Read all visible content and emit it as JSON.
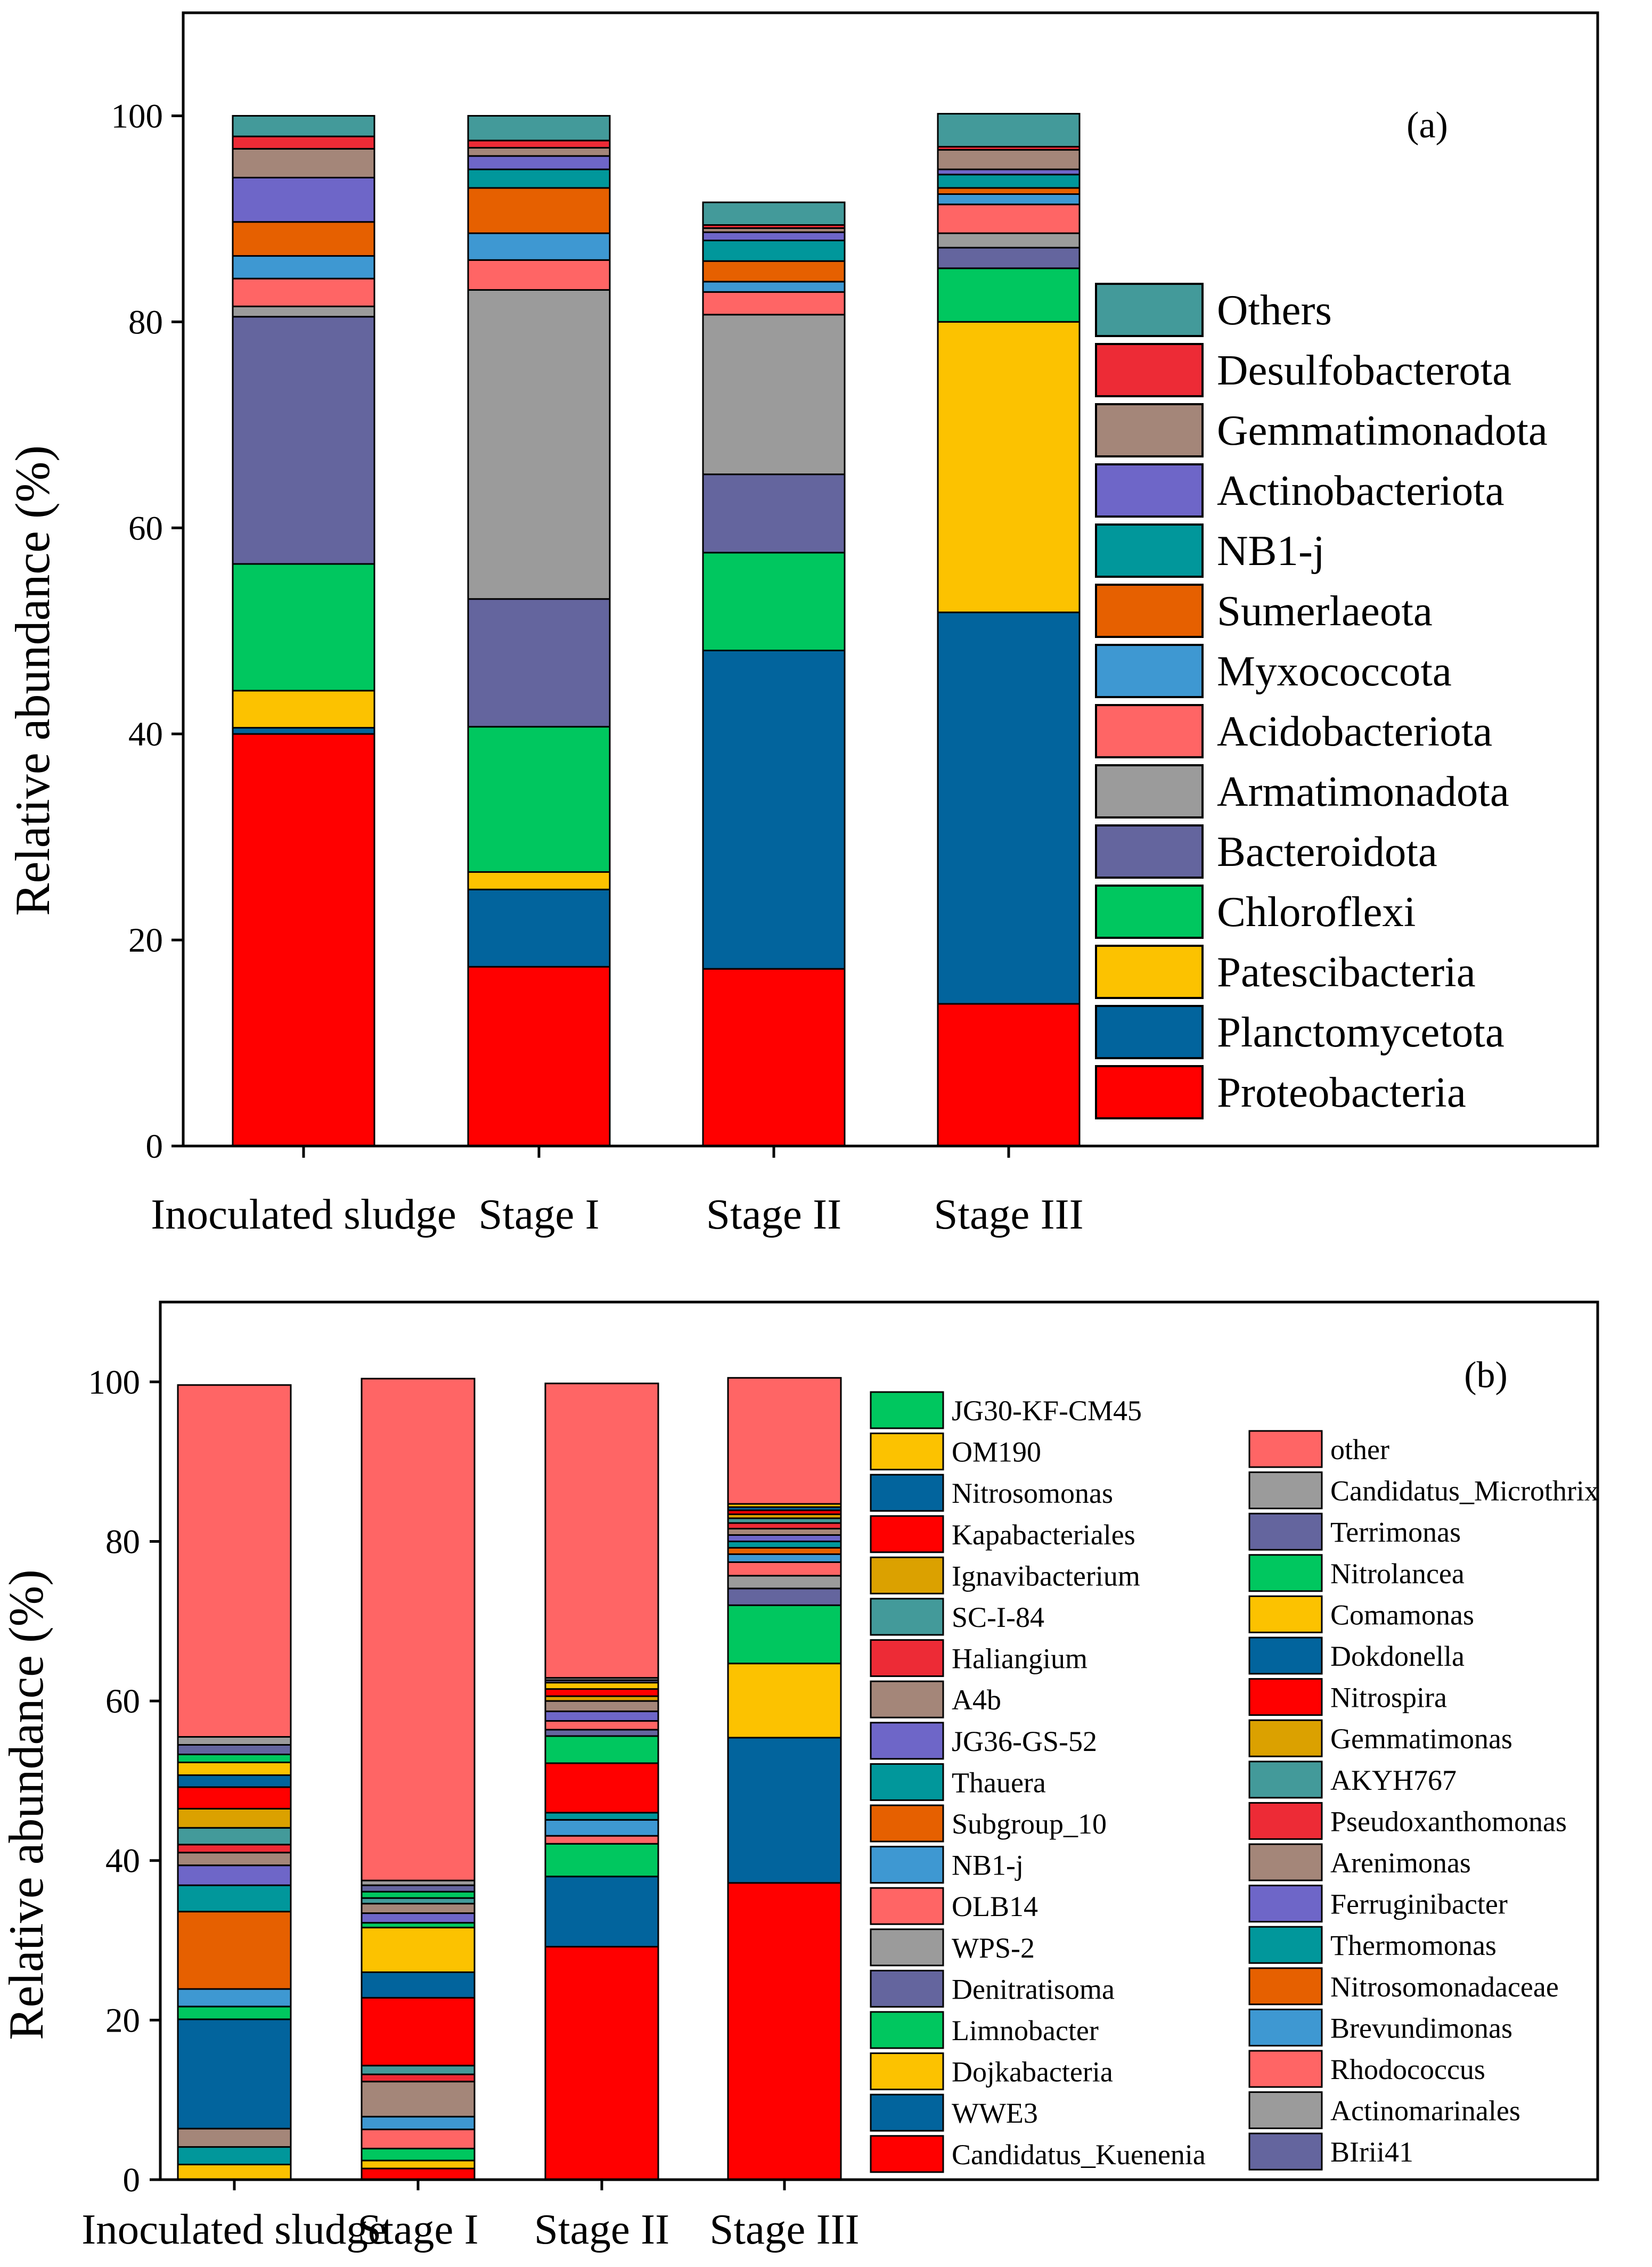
{
  "chart_data": [
    {
      "type": "bar",
      "stacked": true,
      "panel_label": "(a)",
      "ylabel": "Relative abundance (%)",
      "xlabel": "",
      "ylim": [
        0,
        110
      ],
      "yticks": [
        0,
        20,
        40,
        60,
        80,
        100
      ],
      "categories": [
        "Inoculated sludge",
        "Stage I",
        "Stage II",
        "Stage III"
      ],
      "series": [
        {
          "name": "Proteobacteria",
          "color": "#ff0000",
          "values": [
            40.0,
            17.4,
            17.2,
            13.8
          ]
        },
        {
          "name": "Planctomycetota",
          "color": "#02649d",
          "values": [
            0.6,
            7.5,
            30.9,
            38.0
          ]
        },
        {
          "name": "Patescibacteria",
          "color": "#fcc200",
          "values": [
            3.6,
            1.7,
            0.0,
            28.2
          ]
        },
        {
          "name": "Chloroflexi",
          "color": "#00c75f",
          "values": [
            12.3,
            14.1,
            9.5,
            5.2
          ]
        },
        {
          "name": "Bacteroidota",
          "color": "#64659e",
          "values": [
            24.0,
            12.4,
            7.6,
            2.0
          ]
        },
        {
          "name": "Armatimonadota",
          "color": "#9b9b9b",
          "values": [
            1.0,
            30.0,
            15.5,
            1.4
          ]
        },
        {
          "name": "Acidobacteriota",
          "color": "#ff6565",
          "values": [
            2.7,
            2.9,
            2.2,
            2.8
          ]
        },
        {
          "name": "Myxococcota",
          "color": "#3e98d2",
          "values": [
            2.2,
            2.6,
            1.0,
            1.0
          ]
        },
        {
          "name": "Sumerlaeota",
          "color": "#e66000",
          "values": [
            3.3,
            4.4,
            2.0,
            0.6
          ]
        },
        {
          "name": "NB1-j",
          "color": "#01979b",
          "values": [
            0.0,
            1.8,
            2.0,
            1.3
          ]
        },
        {
          "name": "Actinobacteriota",
          "color": "#6e66c8",
          "values": [
            4.3,
            1.3,
            0.8,
            0.5
          ]
        },
        {
          "name": "Gemmatimonadota",
          "color": "#a48679",
          "values": [
            2.8,
            0.8,
            0.4,
            1.9
          ]
        },
        {
          "name": "Desulfobacterota",
          "color": "#ed2b36",
          "values": [
            1.2,
            0.7,
            0.3,
            0.3
          ]
        },
        {
          "name": "Others",
          "color": "#439a9a",
          "values": [
            2.0,
            2.4,
            2.2,
            3.2
          ]
        }
      ]
    },
    {
      "type": "bar",
      "stacked": true,
      "panel_label": "(b)",
      "ylabel": "Relative abundance (%)",
      "xlabel": "",
      "ylim": [
        0,
        110
      ],
      "yticks": [
        0,
        20,
        40,
        60,
        80,
        100
      ],
      "categories": [
        "Inoculated sludge",
        "Stage I",
        "Stage II",
        "Stage III"
      ],
      "series": [
        {
          "name": "Candidatus_Kuenenia",
          "color": "#ff0000",
          "values": [
            0.0,
            1.4,
            29.2,
            37.2
          ]
        },
        {
          "name": "WWE3",
          "color": "#02649d",
          "values": [
            0.0,
            0.0,
            8.8,
            18.2
          ]
        },
        {
          "name": "Dojkabacteria",
          "color": "#fcc200",
          "values": [
            1.9,
            1.0,
            0.0,
            9.3
          ]
        },
        {
          "name": "Limnobacter",
          "color": "#00c75f",
          "values": [
            0.0,
            1.5,
            4.1,
            7.3
          ]
        },
        {
          "name": "Denitratisoma",
          "color": "#64659e",
          "values": [
            0.0,
            0.0,
            0.0,
            2.1
          ]
        },
        {
          "name": "WPS-2",
          "color": "#9b9b9b",
          "values": [
            0.0,
            0.0,
            0.0,
            1.6
          ]
        },
        {
          "name": "OLB14",
          "color": "#ff6565",
          "values": [
            0.0,
            2.4,
            1.0,
            1.7
          ]
        },
        {
          "name": "NB1-j",
          "color": "#3e98d2",
          "values": [
            0.0,
            1.6,
            2.0,
            1.0
          ]
        },
        {
          "name": "Subgroup_10",
          "color": "#e66000",
          "values": [
            0.0,
            0.0,
            0.0,
            0.8
          ]
        },
        {
          "name": "Thauera",
          "color": "#01979b",
          "values": [
            2.2,
            0.0,
            0.9,
            0.8
          ]
        },
        {
          "name": "JG36-GS-52",
          "color": "#6e66c8",
          "values": [
            0.0,
            0.0,
            0.0,
            0.8
          ]
        },
        {
          "name": "A4b",
          "color": "#a48679",
          "values": [
            2.3,
            4.4,
            0.0,
            0.8
          ]
        },
        {
          "name": "Haliangium",
          "color": "#ed2b36",
          "values": [
            0.0,
            0.9,
            0.0,
            0.7
          ]
        },
        {
          "name": "SC-I-84",
          "color": "#439a9a",
          "values": [
            0.0,
            1.1,
            0.0,
            0.6
          ]
        },
        {
          "name": "Ignavibacterium",
          "color": "#dba100",
          "values": [
            0.0,
            0.0,
            0.0,
            0.5
          ]
        },
        {
          "name": "Kapabacteriales",
          "color": "#ff0000",
          "values": [
            0.0,
            8.5,
            6.2,
            0.5
          ]
        },
        {
          "name": "Nitrosomonas",
          "color": "#02649d",
          "values": [
            13.7,
            3.2,
            0.0,
            0.4
          ]
        },
        {
          "name": "OM190",
          "color": "#fcc200",
          "values": [
            0.0,
            5.6,
            0.0,
            0.4
          ]
        },
        {
          "name": "JG30-KF-CM45",
          "color": "#00c75f",
          "values": [
            1.6,
            0.6,
            3.4,
            0.0
          ]
        },
        {
          "name": "BIrii41",
          "color": "#64659e",
          "values": [
            0.0,
            0.0,
            0.8,
            0.0
          ]
        },
        {
          "name": "Actinomarinales",
          "color": "#9b9b9b",
          "values": [
            0.0,
            0.0,
            0.0,
            0.0
          ]
        },
        {
          "name": "Rhodococcus",
          "color": "#ff6565",
          "values": [
            0.0,
            0.0,
            1.1,
            0.0
          ]
        },
        {
          "name": "Brevundimonas",
          "color": "#3e98d2",
          "values": [
            2.2,
            0.0,
            0.0,
            0.0
          ]
        },
        {
          "name": "Nitrosomonadaceae",
          "color": "#e66000",
          "values": [
            9.7,
            0.0,
            0.0,
            0.0
          ]
        },
        {
          "name": "Thermomonas",
          "color": "#01979b",
          "values": [
            3.3,
            0.0,
            0.0,
            0.0
          ]
        },
        {
          "name": "Ferruginibacter",
          "color": "#6e66c8",
          "values": [
            2.5,
            1.2,
            1.2,
            0.0
          ]
        },
        {
          "name": "Arenimonas",
          "color": "#a48679",
          "values": [
            1.6,
            1.2,
            1.3,
            0.0
          ]
        },
        {
          "name": "Pseudoxanthomonas",
          "color": "#ed2b36",
          "values": [
            1.0,
            0.0,
            0.0,
            0.0
          ]
        },
        {
          "name": "AKYH767",
          "color": "#439a9a",
          "values": [
            2.1,
            0.7,
            0.0,
            0.0
          ]
        },
        {
          "name": "Gemmatimonas",
          "color": "#dba100",
          "values": [
            2.4,
            0.0,
            0.6,
            0.0
          ]
        },
        {
          "name": "Nitrospira",
          "color": "#ff0000",
          "values": [
            2.7,
            0.0,
            0.9,
            0.0
          ]
        },
        {
          "name": "Dokdonella",
          "color": "#02649d",
          "values": [
            1.5,
            0.0,
            0.0,
            0.0
          ]
        },
        {
          "name": "Comamonas",
          "color": "#fcc200",
          "values": [
            1.6,
            0.0,
            0.8,
            0.0
          ]
        },
        {
          "name": "Nitrolancea",
          "color": "#00c75f",
          "values": [
            1.0,
            0.8,
            0.0,
            0.0
          ]
        },
        {
          "name": "Terrimonas",
          "color": "#64659e",
          "values": [
            1.2,
            0.8,
            0.3,
            0.0
          ]
        },
        {
          "name": "Candidatus_Microthrix",
          "color": "#9b9b9b",
          "values": [
            1.0,
            0.6,
            0.3,
            0.0
          ]
        },
        {
          "name": "other",
          "color": "#ff6565",
          "values": [
            44.1,
            62.9,
            36.9,
            15.8
          ]
        }
      ],
      "legend_columns": [
        [
          "JG30-KF-CM45",
          "OM190",
          "Nitrosomonas",
          "Kapabacteriales",
          "Ignavibacterium",
          "SC-I-84",
          "Haliangium",
          "A4b",
          "JG36-GS-52",
          "Thauera",
          "Subgroup_10",
          "NB1-j",
          "OLB14",
          "WPS-2",
          "Denitratisoma",
          "Limnobacter",
          "Dojkabacteria",
          "WWE3",
          "Candidatus_Kuenenia"
        ],
        [
          "other",
          "Candidatus_Microthrix",
          "Terrimonas",
          "Nitrolancea",
          "Comamonas",
          "Dokdonella",
          "Nitrospira",
          "Gemmatimonas",
          "AKYH767",
          "Pseudoxanthomonas",
          "Arenimonas",
          "Ferruginibacter",
          "Thermomonas",
          "Nitrosomonadaceae",
          "Brevundimonas",
          "Rhodococcus",
          "Actinomarinales",
          "BIrii41"
        ]
      ]
    }
  ]
}
